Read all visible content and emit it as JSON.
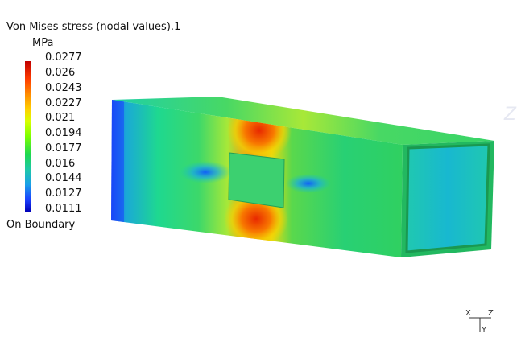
{
  "legend": {
    "title": "Von Mises stress (nodal values).1",
    "unit": "MPa",
    "ticks": [
      "0.0277",
      "0.026",
      "0.0243",
      "0.0227",
      "0.021",
      "0.0194",
      "0.0177",
      "0.016",
      "0.0144",
      "0.0127",
      "0.0111"
    ],
    "footer": "On Boundary"
  },
  "axes": {
    "x": "X",
    "z": "Z",
    "y": "Y"
  },
  "colors": {
    "max": "#c00000",
    "min": "#0000b8",
    "mid": "#1ed850"
  }
}
